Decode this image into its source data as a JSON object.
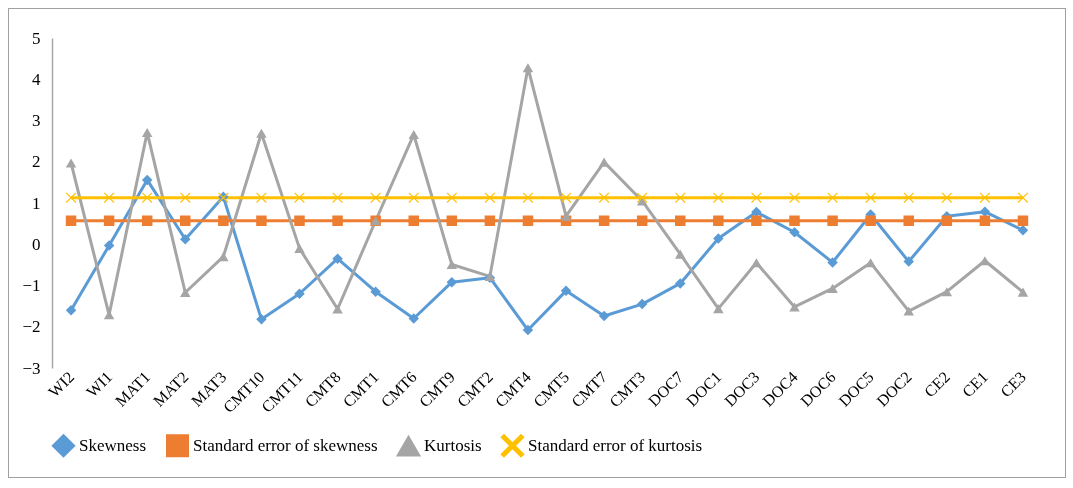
{
  "chart_data": {
    "type": "line",
    "categories": [
      "WI2",
      "WI1",
      "MAT1",
      "MAT2",
      "MAT3",
      "CMT10",
      "CMT11",
      "CMT8",
      "CMT1",
      "CMT6",
      "CMT9",
      "CMT2",
      "CMT4",
      "CMT5",
      "CMT7",
      "CMT3",
      "DOC7",
      "DOC1",
      "DOC3",
      "DOC4",
      "DOC6",
      "DOC5",
      "DOC2",
      "CE2",
      "CE1",
      "CE3"
    ],
    "series": [
      {
        "name": "Skewness",
        "color": "#5b9bd5",
        "marker": "diamond",
        "values": [
          -1.6,
          -0.03,
          1.56,
          0.12,
          1.15,
          -1.82,
          -1.2,
          -0.35,
          -1.15,
          -1.8,
          -0.92,
          -0.81,
          -2.08,
          -1.13,
          -1.74,
          -1.45,
          -0.95,
          0.14,
          0.78,
          0.29,
          -0.44,
          0.72,
          -0.42,
          0.68,
          0.79,
          0.34
        ]
      },
      {
        "name": "Standard error of skewness",
        "color": "#ed7d31",
        "marker": "square",
        "values": [
          0.57,
          0.57,
          0.57,
          0.57,
          0.57,
          0.57,
          0.57,
          0.57,
          0.57,
          0.57,
          0.57,
          0.57,
          0.57,
          0.57,
          0.57,
          0.57,
          0.57,
          0.57,
          0.57,
          0.57,
          0.57,
          0.57,
          0.57,
          0.57,
          0.57,
          0.57
        ]
      },
      {
        "name": "Kurtosis",
        "color": "#a5a5a5",
        "marker": "triangle",
        "values": [
          1.97,
          -1.71,
          2.71,
          -1.17,
          -0.3,
          2.69,
          -0.1,
          -1.57,
          0.57,
          2.66,
          -0.49,
          -0.78,
          4.28,
          0.68,
          1.99,
          1.05,
          -0.24,
          -1.56,
          -0.45,
          -1.52,
          -1.07,
          -0.45,
          -1.62,
          -1.15,
          -0.4,
          -1.16
        ]
      },
      {
        "name": "Standard error of kurtosis",
        "color": "#ffc000",
        "marker": "cross",
        "values": [
          1.13,
          1.13,
          1.13,
          1.13,
          1.13,
          1.13,
          1.13,
          1.13,
          1.13,
          1.13,
          1.13,
          1.13,
          1.13,
          1.13,
          1.13,
          1.13,
          1.13,
          1.13,
          1.13,
          1.13,
          1.13,
          1.13,
          1.13,
          1.13,
          1.13,
          1.13
        ]
      }
    ],
    "ylim": [
      -3,
      5
    ],
    "yticks": [
      -3,
      -2,
      -1,
      0,
      1,
      2,
      3,
      4,
      5
    ],
    "grid": false,
    "legend": "bottom",
    "line_style": "solid"
  }
}
